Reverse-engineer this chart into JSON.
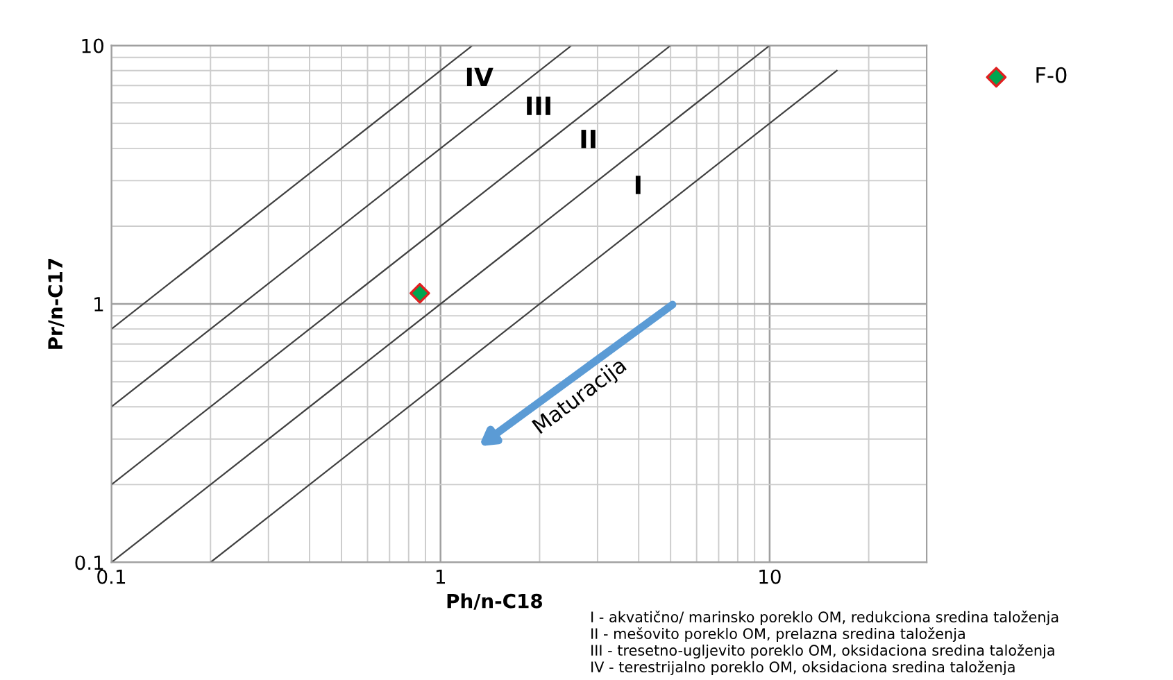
{
  "chart_data": {
    "type": "scatter",
    "xlabel": "Ph/n-C18",
    "ylabel": "Pr/n-C17",
    "log": "xy",
    "xlim": [
      0.1,
      30
    ],
    "ylim": [
      0.1,
      10
    ],
    "xticks": [
      0.1,
      1,
      10
    ],
    "yticks": [
      0.1,
      1,
      10
    ],
    "grid": true,
    "legend": "top right",
    "series": [
      {
        "type": "line",
        "color": "#404040",
        "x": [
          0.1,
          1.25
        ],
        "values": [
          0.8,
          10
        ]
      },
      {
        "type": "line",
        "color": "#404040",
        "x": [
          0.1,
          2.5
        ],
        "values": [
          0.4,
          10
        ]
      },
      {
        "type": "line",
        "color": "#404040",
        "x": [
          0.1,
          5
        ],
        "values": [
          0.2,
          10
        ]
      },
      {
        "type": "line",
        "color": "#404040",
        "x": [
          0.1,
          10
        ],
        "values": [
          0.1,
          10
        ]
      },
      {
        "type": "line",
        "color": "#404040",
        "x": [
          0.2,
          16
        ],
        "values": [
          0.1,
          8
        ]
      },
      {
        "name": "F-0",
        "color": "#00a550",
        "marker": "diamond",
        "x": [
          0.865
        ],
        "values": [
          1.1
        ]
      }
    ],
    "annotations": [
      "IV",
      "III",
      "II",
      "I",
      "Maturacija",
      "I - akvatično/ marinsko poreklo OM, redukciona sredina taloženja",
      "II - mešovito poreklo OM, prelazna sredina taloženja",
      "III - tresetno-ugljevito poreklo OM, oksidaciona sredina taloženja",
      "IV - terestrijalno poreklo OM, oksidaciona sredina taloženja"
    ]
  }
}
